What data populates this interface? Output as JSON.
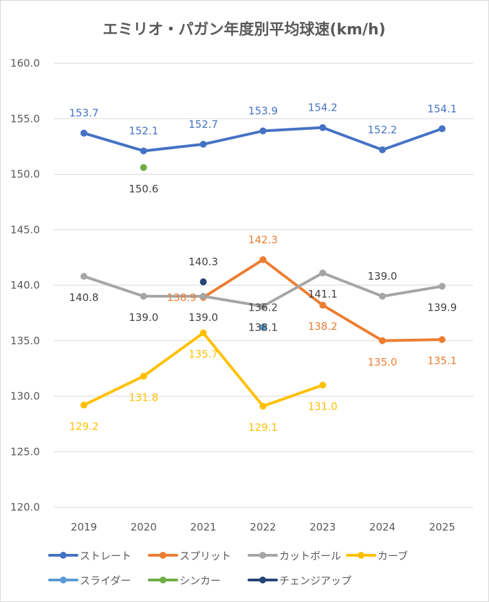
{
  "chart_data": {
    "type": "line",
    "title": "エミリオ・パガン年度別平均球速(km/h)",
    "xlabel": "",
    "ylabel": "",
    "categories": [
      "2019",
      "2020",
      "2021",
      "2022",
      "2023",
      "2024",
      "2025"
    ],
    "ylim": [
      120,
      160
    ],
    "yticks": [
      "120.0",
      "125.0",
      "130.0",
      "135.0",
      "140.0",
      "145.0",
      "150.0",
      "155.0",
      "160.0"
    ],
    "grid": true,
    "legend_position": "bottom",
    "series": [
      {
        "name": "ストレート",
        "color": "#4472c4",
        "values": [
          153.7,
          152.1,
          152.7,
          153.9,
          154.2,
          152.2,
          154.1
        ]
      },
      {
        "name": "スプリット",
        "color": "#ed7d31",
        "values": [
          null,
          null,
          138.9,
          142.3,
          138.2,
          135.0,
          135.1
        ]
      },
      {
        "name": "カットボール",
        "color": "#a5a5a5",
        "values": [
          140.8,
          139.0,
          139.0,
          138.1,
          141.1,
          139.0,
          139.9
        ]
      },
      {
        "name": "カーブ",
        "color": "#ffc000",
        "values": [
          129.2,
          131.8,
          135.7,
          129.1,
          131.0,
          null,
          null
        ]
      },
      {
        "name": "スライダー",
        "color": "#5b9bd5",
        "values": [
          null,
          null,
          null,
          136.2,
          null,
          null,
          null
        ]
      },
      {
        "name": "シンカー",
        "color": "#70ad47",
        "values": [
          null,
          150.6,
          null,
          null,
          null,
          null,
          null
        ]
      },
      {
        "name": "チェンジアップ",
        "color": "#264478",
        "values": [
          null,
          null,
          140.3,
          null,
          null,
          null,
          null
        ]
      }
    ]
  }
}
